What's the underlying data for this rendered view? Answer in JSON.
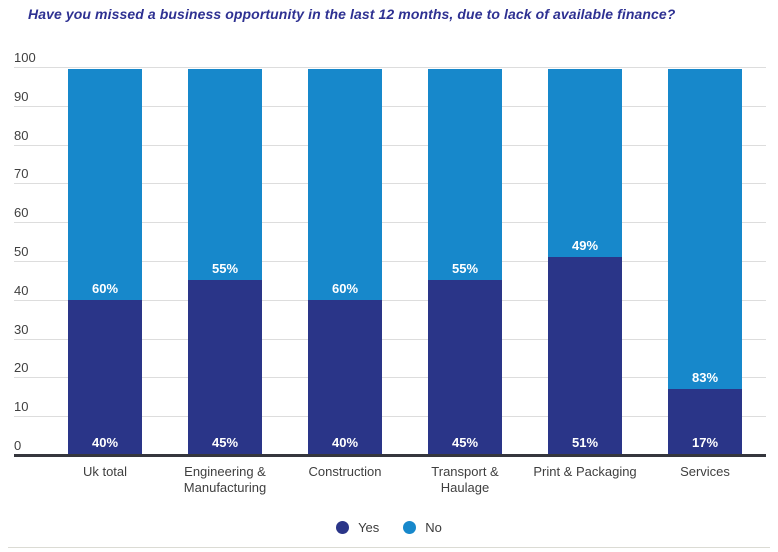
{
  "chart_data": {
    "type": "bar",
    "stacked": true,
    "title": "Have you missed a business opportunity in the last 12 months, due to lack of available finance?",
    "categories": [
      "Uk total",
      "Engineering &\nManufacturing",
      "Construction",
      "Transport &\nHaulage",
      "Print & Packaging",
      "Services"
    ],
    "series": [
      {
        "name": "Yes",
        "color": "#2A3588",
        "values": [
          40,
          45,
          40,
          45,
          51,
          17
        ]
      },
      {
        "name": "No",
        "color": "#1788CB",
        "values": [
          60,
          55,
          60,
          55,
          49,
          83
        ]
      }
    ],
    "value_suffix": "%",
    "xlabel": "",
    "ylabel": "",
    "ylim": [
      0,
      100
    ],
    "yticks": [
      0,
      10,
      20,
      30,
      40,
      50,
      60,
      70,
      80,
      90,
      100
    ],
    "grid": true,
    "legend_position": "bottom"
  },
  "colors": {
    "title": "#2E3192",
    "gridline": "#DDDDDD",
    "axis_line": "#35363D",
    "tick_text": "#404040",
    "value_text": "#FFFFFF",
    "divider": "#DBDBD4"
  }
}
